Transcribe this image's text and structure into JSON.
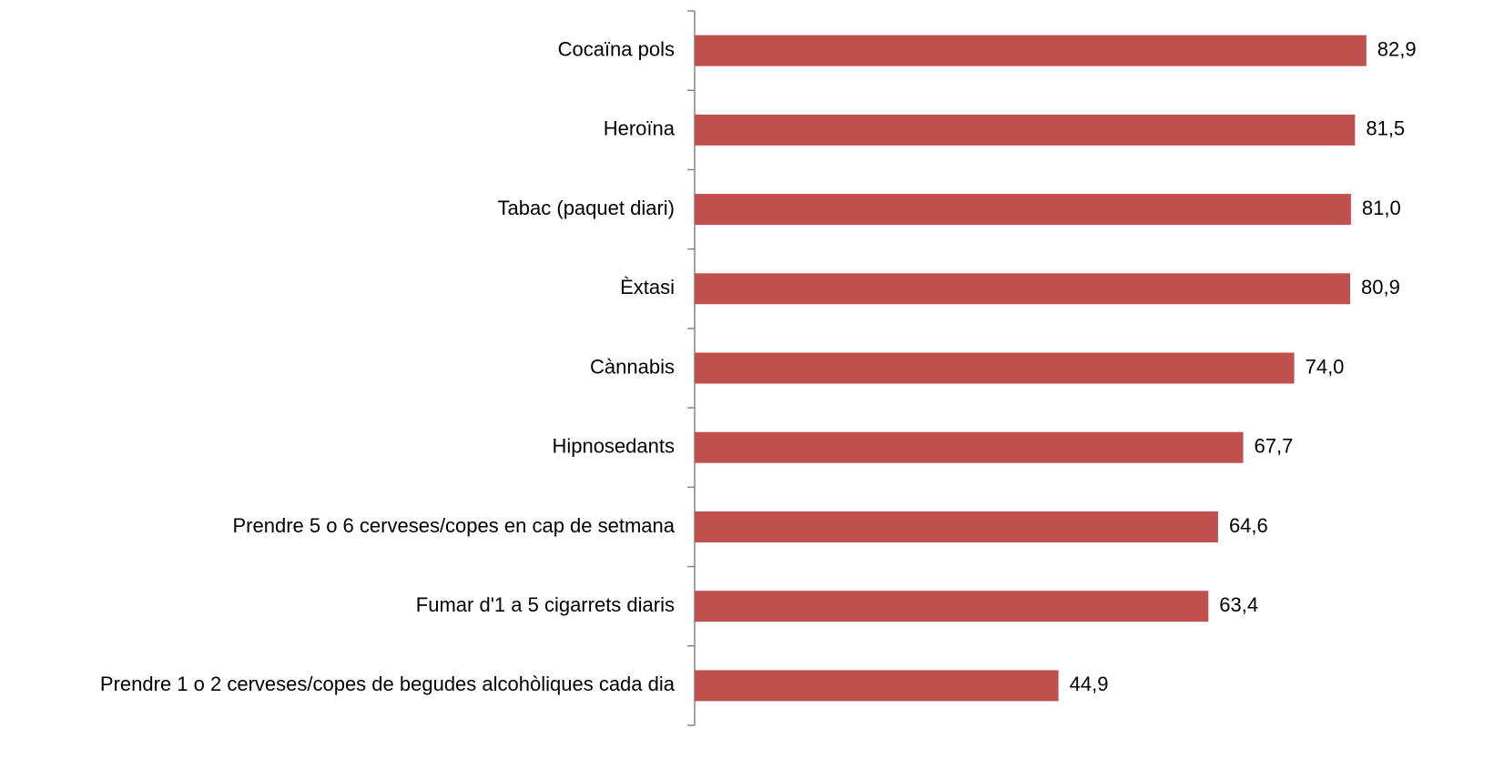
{
  "chart_data": {
    "type": "bar",
    "orientation": "horizontal",
    "categories": [
      "Cocaïna pols",
      "Heroïna",
      "Tabac (paquet diari)",
      "Èxtasi",
      "Cànnabis",
      "Hipnosedants",
      "Prendre 5 o 6 cerveses/copes en cap de setmana",
      "Fumar d'1 a 5 cigarrets diaris",
      "Prendre 1 o 2 cerveses/copes de begudes alcohòliques cada dia"
    ],
    "values": [
      82.9,
      81.5,
      81.0,
      80.9,
      74.0,
      67.7,
      64.6,
      63.4,
      44.9
    ],
    "value_labels": [
      "82,9",
      "81,5",
      "81,0",
      "80,9",
      "74,0",
      "67,7",
      "64,6",
      "63,4",
      "44,9"
    ],
    "color": "#c0504d"
  }
}
